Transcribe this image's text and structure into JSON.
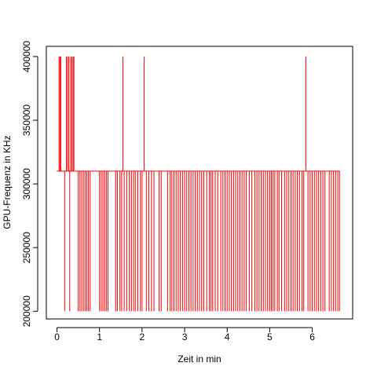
{
  "chart_data": {
    "type": "line",
    "title": "",
    "xlabel": "Zeit in min",
    "ylabel": "GPU-Frequenz in KHz",
    "xlim": [
      -0.25,
      6.95
    ],
    "ylim": [
      194000,
      408000
    ],
    "xticks": [
      0,
      1,
      2,
      3,
      4,
      5,
      6
    ],
    "yticks": [
      200000,
      250000,
      300000,
      350000,
      400000
    ],
    "xtick_labels": [
      "0",
      "1",
      "2",
      "3",
      "4",
      "5",
      "6"
    ],
    "ytick_labels": [
      "200000",
      "250000",
      "300000",
      "350000",
      "400000"
    ],
    "grid": false,
    "legend": "none",
    "line_color": "#FF0000",
    "axis_color": "#000000",
    "baseline_value": 310000,
    "x_range": [
      0.0,
      6.65
    ],
    "series": [
      {
        "spikes_high": [
          {
            "x": 0.05,
            "y": 400000
          },
          {
            "x": 0.07,
            "y": 400000
          },
          {
            "x": 0.09,
            "y": 400000
          },
          {
            "x": 0.22,
            "y": 400000
          },
          {
            "x": 0.25,
            "y": 400000
          },
          {
            "x": 0.28,
            "y": 400000
          },
          {
            "x": 0.32,
            "y": 400000
          },
          {
            "x": 0.35,
            "y": 400000
          },
          {
            "x": 0.38,
            "y": 400000
          },
          {
            "x": 0.4,
            "y": 400000
          },
          {
            "x": 1.55,
            "y": 400000
          },
          {
            "x": 2.05,
            "y": 400000
          },
          {
            "x": 5.85,
            "y": 400000
          }
        ],
        "spikes_low": [
          0.18,
          0.3,
          0.5,
          0.54,
          0.58,
          0.62,
          0.66,
          0.7,
          0.74,
          0.78,
          1.0,
          1.04,
          1.08,
          1.12,
          1.16,
          1.2,
          1.38,
          1.42,
          1.48,
          1.52,
          1.58,
          1.64,
          1.7,
          1.75,
          1.8,
          1.84,
          1.9,
          1.96,
          2.0,
          2.1,
          2.16,
          2.22,
          2.28,
          2.4,
          2.45,
          2.6,
          2.66,
          2.7,
          2.75,
          2.8,
          2.85,
          2.9,
          2.95,
          3.0,
          3.05,
          3.1,
          3.15,
          3.2,
          3.25,
          3.3,
          3.35,
          3.4,
          3.45,
          3.52,
          3.58,
          3.62,
          3.66,
          3.72,
          3.78,
          3.85,
          3.9,
          3.95,
          4.0,
          4.05,
          4.1,
          4.15,
          4.2,
          4.25,
          4.3,
          4.35,
          4.4,
          4.45,
          4.52,
          4.58,
          4.65,
          4.7,
          4.75,
          4.8,
          4.85,
          4.9,
          4.95,
          5.0,
          5.04,
          5.08,
          5.12,
          5.18,
          5.22,
          5.28,
          5.35,
          5.4,
          5.45,
          5.5,
          5.55,
          5.6,
          5.65,
          5.7,
          5.76,
          5.8,
          5.9,
          5.95,
          6.0,
          6.05,
          6.1,
          6.15,
          6.2,
          6.25,
          6.3,
          6.4,
          6.45,
          6.5,
          6.55,
          6.6,
          6.64
        ],
        "low_value": 200000
      }
    ]
  }
}
